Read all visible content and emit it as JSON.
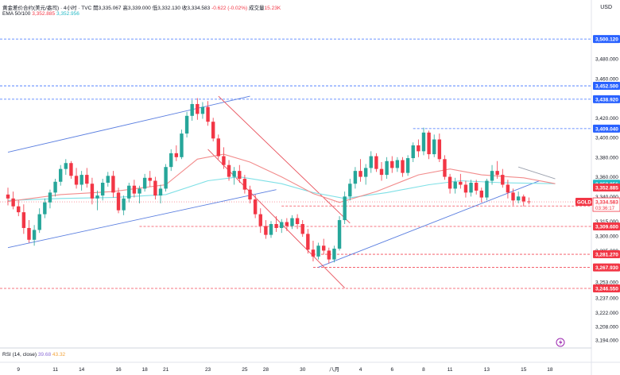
{
  "header": {
    "symbol_line": "黄金差价合约(美元/盎司) · 4小时 · TVC",
    "open_label": "開",
    "open": "3,335.067",
    "high_label": "高",
    "high": "3,339.000",
    "low_label": "低",
    "low": "3,332.130",
    "close_label": "收",
    "close": "3,334.583",
    "change": "-0.622 (-0.02%)",
    "volume_label": "成交量",
    "volume": "15.23K"
  },
  "ema": {
    "label": "EMA 50/100",
    "v50": "3,352.885",
    "v100": "3,352.956"
  },
  "rsi": {
    "label": "RSI (14, close)",
    "v1": "39.68",
    "v2": "43.32"
  },
  "currency": "USD",
  "colors": {
    "up": "#26a69a",
    "down": "#f23645",
    "ema50": "#f28c8c",
    "ema100": "#7fe0e6",
    "channel": "#5b7fe0",
    "down_channel": "#e8505b",
    "level_blue": "#2962ff",
    "level_red": "#f23645"
  },
  "symbol_tag": "GOLD",
  "countdown": "03:36:17",
  "chart_data": {
    "type": "candlestick",
    "title": "黄金差价合约(美元/盎司) · 4小时 · TVC",
    "ylabel": "USD",
    "ylim": [
      3186,
      3522
    ],
    "y_ticks": [
      3480,
      3460,
      3420,
      3400,
      3380,
      3360,
      3340,
      3315,
      3300,
      3285,
      3253,
      3237,
      3222,
      3208,
      3194
    ],
    "x_ticks": [
      {
        "label": "9",
        "i": 2
      },
      {
        "label": "11",
        "i": 9
      },
      {
        "label": "14",
        "i": 14
      },
      {
        "label": "16",
        "i": 21
      },
      {
        "label": "18",
        "i": 26
      },
      {
        "label": "21",
        "i": 30
      },
      {
        "label": "23",
        "i": 38
      },
      {
        "label": "25",
        "i": 45
      },
      {
        "label": "28",
        "i": 49
      },
      {
        "label": "30",
        "i": 56
      },
      {
        "label": "八月",
        "i": 62
      },
      {
        "label": "4",
        "i": 67
      },
      {
        "label": "6",
        "i": 73
      },
      {
        "label": "8",
        "i": 79
      },
      {
        "label": "11",
        "i": 84
      },
      {
        "label": "13",
        "i": 91
      },
      {
        "label": "15",
        "i": 98
      },
      {
        "label": "18",
        "i": 103
      }
    ],
    "candles": [
      [
        3342,
        3349,
        3331,
        3338
      ],
      [
        3338,
        3345,
        3327,
        3330
      ],
      [
        3330,
        3336,
        3320,
        3324
      ],
      [
        3324,
        3332,
        3302,
        3308
      ],
      [
        3308,
        3316,
        3293,
        3296
      ],
      [
        3296,
        3311,
        3290,
        3306
      ],
      [
        3306,
        3328,
        3303,
        3322
      ],
      [
        3322,
        3338,
        3318,
        3334
      ],
      [
        3334,
        3347,
        3328,
        3344
      ],
      [
        3344,
        3358,
        3340,
        3355
      ],
      [
        3355,
        3372,
        3351,
        3368
      ],
      [
        3368,
        3378,
        3362,
        3374
      ],
      [
        3374,
        3376,
        3358,
        3361
      ],
      [
        3361,
        3369,
        3348,
        3352
      ],
      [
        3352,
        3366,
        3346,
        3362
      ],
      [
        3362,
        3369,
        3349,
        3353
      ],
      [
        3353,
        3359,
        3332,
        3338
      ],
      [
        3338,
        3346,
        3326,
        3341
      ],
      [
        3341,
        3358,
        3336,
        3354
      ],
      [
        3354,
        3365,
        3350,
        3361
      ],
      [
        3361,
        3366,
        3339,
        3344
      ],
      [
        3344,
        3349,
        3323,
        3326
      ],
      [
        3326,
        3341,
        3321,
        3338
      ],
      [
        3338,
        3354,
        3334,
        3351
      ],
      [
        3351,
        3357,
        3339,
        3343
      ],
      [
        3343,
        3351,
        3333,
        3348
      ],
      [
        3348,
        3363,
        3345,
        3359
      ],
      [
        3359,
        3366,
        3350,
        3356
      ],
      [
        3356,
        3360,
        3337,
        3341
      ],
      [
        3341,
        3352,
        3333,
        3348
      ],
      [
        3348,
        3373,
        3345,
        3370
      ],
      [
        3370,
        3388,
        3366,
        3384
      ],
      [
        3384,
        3392,
        3376,
        3380
      ],
      [
        3380,
        3408,
        3378,
        3404
      ],
      [
        3404,
        3426,
        3400,
        3422
      ],
      [
        3422,
        3438,
        3417,
        3434
      ],
      [
        3434,
        3440,
        3418,
        3424
      ],
      [
        3424,
        3436,
        3419,
        3431
      ],
      [
        3431,
        3437,
        3412,
        3416
      ],
      [
        3416,
        3420,
        3396,
        3399
      ],
      [
        3399,
        3403,
        3378,
        3381
      ],
      [
        3381,
        3390,
        3368,
        3372
      ],
      [
        3372,
        3377,
        3356,
        3360
      ],
      [
        3360,
        3370,
        3352,
        3366
      ],
      [
        3366,
        3372,
        3354,
        3358
      ],
      [
        3358,
        3362,
        3343,
        3347
      ],
      [
        3347,
        3351,
        3333,
        3337
      ],
      [
        3337,
        3342,
        3318,
        3322
      ],
      [
        3322,
        3328,
        3303,
        3310
      ],
      [
        3310,
        3316,
        3297,
        3301
      ],
      [
        3301,
        3315,
        3298,
        3312
      ],
      [
        3312,
        3320,
        3304,
        3308
      ],
      [
        3308,
        3317,
        3303,
        3314
      ],
      [
        3314,
        3318,
        3305,
        3310
      ],
      [
        3310,
        3321,
        3307,
        3318
      ],
      [
        3318,
        3322,
        3307,
        3312
      ],
      [
        3312,
        3316,
        3299,
        3302
      ],
      [
        3302,
        3307,
        3282,
        3286
      ],
      [
        3286,
        3295,
        3274,
        3279
      ],
      [
        3279,
        3293,
        3276,
        3290
      ],
      [
        3290,
        3297,
        3281,
        3285
      ],
      [
        3285,
        3288,
        3272,
        3276
      ],
      [
        3276,
        3290,
        3273,
        3287
      ],
      [
        3287,
        3320,
        3285,
        3316
      ],
      [
        3316,
        3345,
        3312,
        3340
      ],
      [
        3340,
        3358,
        3336,
        3353
      ],
      [
        3353,
        3370,
        3348,
        3366
      ],
      [
        3366,
        3378,
        3355,
        3360
      ],
      [
        3360,
        3373,
        3352,
        3369
      ],
      [
        3369,
        3386,
        3364,
        3381
      ],
      [
        3381,
        3384,
        3365,
        3368
      ],
      [
        3368,
        3375,
        3356,
        3362
      ],
      [
        3362,
        3380,
        3358,
        3376
      ],
      [
        3376,
        3381,
        3364,
        3369
      ],
      [
        3369,
        3380,
        3365,
        3377
      ],
      [
        3377,
        3380,
        3360,
        3364
      ],
      [
        3364,
        3382,
        3361,
        3379
      ],
      [
        3379,
        3395,
        3375,
        3392
      ],
      [
        3392,
        3398,
        3380,
        3386
      ],
      [
        3386,
        3410,
        3382,
        3405
      ],
      [
        3405,
        3407,
        3378,
        3383
      ],
      [
        3383,
        3403,
        3380,
        3398
      ],
      [
        3398,
        3404,
        3375,
        3378
      ],
      [
        3378,
        3382,
        3357,
        3360
      ],
      [
        3360,
        3363,
        3343,
        3348
      ],
      [
        3348,
        3359,
        3343,
        3355
      ],
      [
        3355,
        3363,
        3348,
        3352
      ],
      [
        3352,
        3356,
        3339,
        3344
      ],
      [
        3344,
        3357,
        3340,
        3354
      ],
      [
        3354,
        3357,
        3342,
        3346
      ],
      [
        3346,
        3349,
        3334,
        3339
      ],
      [
        3339,
        3358,
        3336,
        3356
      ],
      [
        3356,
        3372,
        3352,
        3366
      ],
      [
        3366,
        3376,
        3358,
        3362
      ],
      [
        3362,
        3368,
        3349,
        3352
      ],
      [
        3352,
        3357,
        3338,
        3344
      ],
      [
        3344,
        3348,
        3331,
        3336
      ],
      [
        3336,
        3345,
        3333,
        3340
      ],
      [
        3340,
        3342,
        3330,
        3335
      ],
      [
        3335,
        3339,
        3332,
        3334.583
      ]
    ],
    "ema50": [
      [
        0,
        3335
      ],
      [
        10,
        3342
      ],
      [
        20,
        3345
      ],
      [
        30,
        3352
      ],
      [
        36,
        3378
      ],
      [
        41,
        3383
      ],
      [
        46,
        3375
      ],
      [
        52,
        3360
      ],
      [
        58,
        3343
      ],
      [
        63,
        3334
      ],
      [
        70,
        3345
      ],
      [
        78,
        3362
      ],
      [
        84,
        3368
      ],
      [
        90,
        3362
      ],
      [
        98,
        3359
      ],
      [
        104,
        3353
      ]
    ],
    "ema100": [
      [
        0,
        3336
      ],
      [
        10,
        3338
      ],
      [
        20,
        3339
      ],
      [
        30,
        3342
      ],
      [
        38,
        3356
      ],
      [
        44,
        3360
      ],
      [
        52,
        3353
      ],
      [
        58,
        3344
      ],
      [
        64,
        3338
      ],
      [
        72,
        3344
      ],
      [
        80,
        3352
      ],
      [
        86,
        3356
      ],
      [
        94,
        3354
      ],
      [
        104,
        3353
      ]
    ],
    "levels": [
      {
        "price": 3500.12,
        "label": "3,500.120",
        "color": "blue"
      },
      {
        "price": 3452.5,
        "label": "3,452.500",
        "color": "blue"
      },
      {
        "price": 3438.92,
        "label": "3,438.920",
        "color": "blue"
      },
      {
        "price": 3409.04,
        "label": "3,409.040",
        "color": "blue"
      },
      {
        "price": 3352.956,
        "label": "3,352.956",
        "color": "ema100"
      },
      {
        "price": 3352.885,
        "label": "3,352.885",
        "color": "ema50"
      },
      {
        "price": 3334.583,
        "label": "3,334.583",
        "color": "last"
      },
      {
        "price": 3330.403,
        "label": "3,330.403",
        "color": "red"
      },
      {
        "price": 3309.6,
        "label": "3,309.600",
        "color": "red"
      },
      {
        "price": 3281.27,
        "label": "3,281.270",
        "color": "red"
      },
      {
        "price": 3267.93,
        "label": "3,267.930",
        "color": "red"
      },
      {
        "price": 3246.55,
        "label": "3,246.550",
        "color": "red"
      }
    ],
    "trendlines": [
      {
        "color": "channel",
        "from": [
          0,
          3385
        ],
        "to": [
          46,
          3442
        ]
      },
      {
        "color": "channel",
        "from": [
          0,
          3288
        ],
        "to": [
          51,
          3347
        ]
      },
      {
        "color": "channel",
        "from": [
          59,
          3268
        ],
        "to": [
          101,
          3356
        ]
      },
      {
        "color": "down_channel",
        "from": [
          40,
          3442
        ],
        "to": [
          65,
          3313
        ]
      },
      {
        "color": "down_channel",
        "from": [
          38,
          3388
        ],
        "to": [
          64,
          3247
        ]
      },
      {
        "color": "channel_gray",
        "from": [
          97,
          3370
        ],
        "to": [
          104,
          3358
        ]
      }
    ],
    "level_starts": {
      "3409.040": 77,
      "3330.403": 52,
      "3309.600": 25,
      "3281.270": 58,
      "3267.930": 58
    }
  }
}
